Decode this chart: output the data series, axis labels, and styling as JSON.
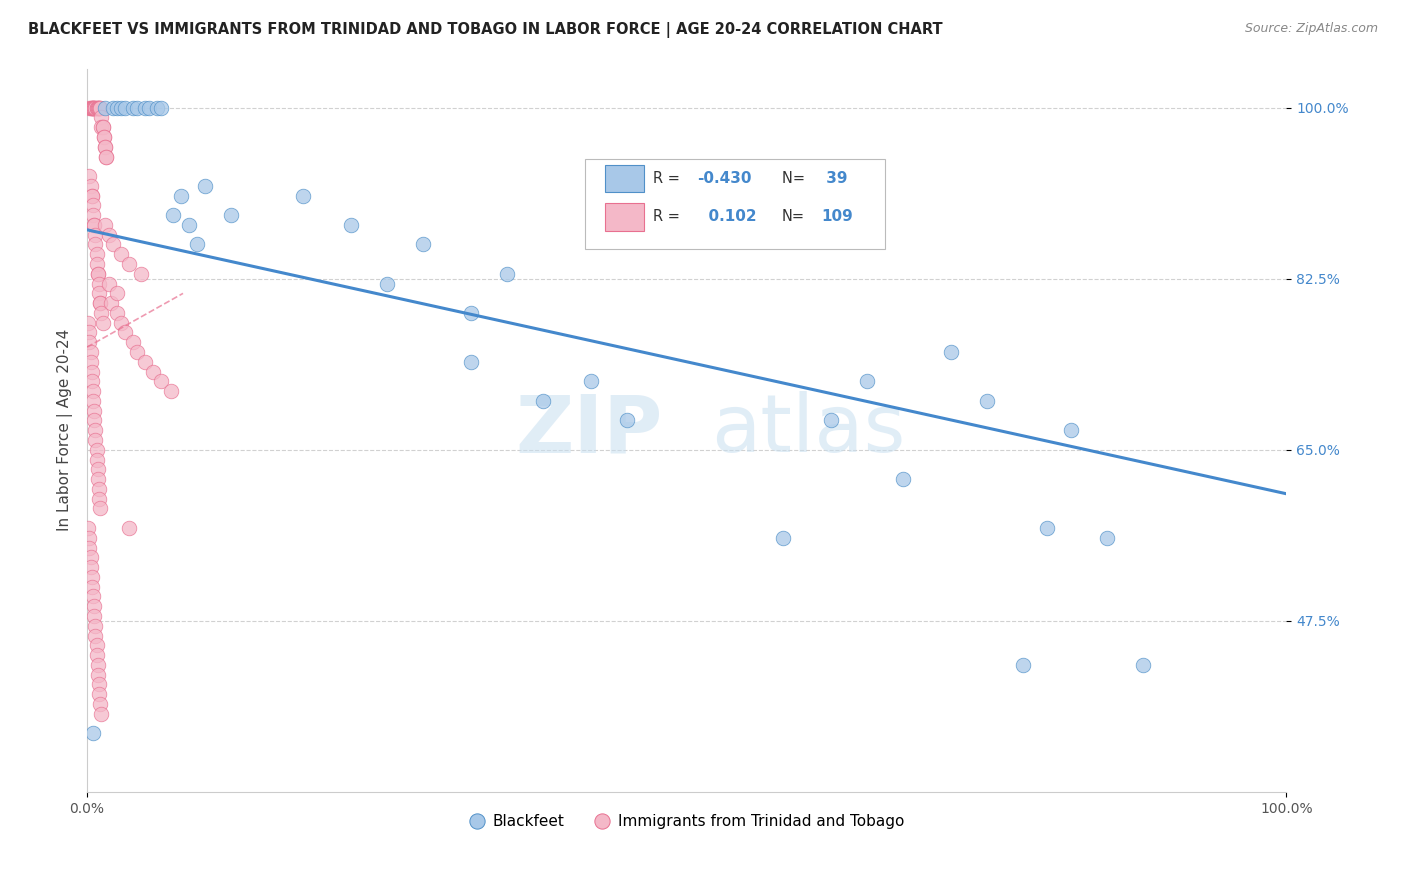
{
  "title": "BLACKFEET VS IMMIGRANTS FROM TRINIDAD AND TOBAGO IN LABOR FORCE | AGE 20-24 CORRELATION CHART",
  "source": "Source: ZipAtlas.com",
  "ylabel": "In Labor Force | Age 20-24",
  "xlim": [
    0,
    1.0
  ],
  "ylim": [
    0.3,
    1.04
  ],
  "yticks": [
    0.475,
    0.65,
    0.825,
    1.0
  ],
  "ytick_labels": [
    "47.5%",
    "65.0%",
    "82.5%",
    "100.0%"
  ],
  "xtick_labels": [
    "0.0%",
    "100.0%"
  ],
  "xtick_pos": [
    0.0,
    1.0
  ],
  "blue_R": -0.43,
  "blue_N": 39,
  "pink_R": 0.102,
  "pink_N": 109,
  "blue_color": "#a8c8e8",
  "pink_color": "#f4b8c8",
  "blue_edge_color": "#5090c8",
  "pink_edge_color": "#e87090",
  "blue_line_color": "#4488cc",
  "pink_line_color": "#e87090",
  "watermark_zip": "ZIP",
  "watermark_atlas": "atlas",
  "legend_label_blue": "Blackfeet",
  "legend_label_pink": "Immigrants from Trinidad and Tobago",
  "blue_scatter_x": [
    0.005,
    0.015,
    0.022,
    0.025,
    0.028,
    0.032,
    0.038,
    0.042,
    0.048,
    0.052,
    0.058,
    0.062,
    0.072,
    0.078,
    0.085,
    0.092,
    0.098,
    0.12,
    0.18,
    0.22,
    0.25,
    0.28,
    0.32,
    0.35,
    0.42,
    0.45,
    0.38,
    0.32,
    0.58,
    0.62,
    0.65,
    0.72,
    0.75,
    0.8,
    0.82,
    0.85,
    0.88,
    0.78,
    0.68
  ],
  "blue_scatter_y": [
    0.36,
    1.0,
    1.0,
    1.0,
    1.0,
    1.0,
    1.0,
    1.0,
    1.0,
    1.0,
    1.0,
    1.0,
    0.89,
    0.91,
    0.88,
    0.86,
    0.92,
    0.89,
    0.91,
    0.88,
    0.82,
    0.86,
    0.79,
    0.83,
    0.72,
    0.68,
    0.7,
    0.74,
    0.56,
    0.68,
    0.72,
    0.75,
    0.7,
    0.57,
    0.67,
    0.56,
    0.43,
    0.43,
    0.62
  ],
  "pink_scatter_x": [
    0.002,
    0.003,
    0.003,
    0.004,
    0.004,
    0.005,
    0.005,
    0.005,
    0.006,
    0.006,
    0.007,
    0.007,
    0.008,
    0.008,
    0.009,
    0.009,
    0.01,
    0.01,
    0.011,
    0.011,
    0.012,
    0.012,
    0.013,
    0.013,
    0.014,
    0.014,
    0.015,
    0.015,
    0.016,
    0.016,
    0.002,
    0.003,
    0.004,
    0.004,
    0.005,
    0.005,
    0.006,
    0.006,
    0.007,
    0.007,
    0.008,
    0.008,
    0.009,
    0.009,
    0.01,
    0.01,
    0.011,
    0.011,
    0.012,
    0.013,
    0.001,
    0.002,
    0.002,
    0.003,
    0.003,
    0.004,
    0.004,
    0.005,
    0.005,
    0.006,
    0.006,
    0.007,
    0.007,
    0.008,
    0.008,
    0.009,
    0.009,
    0.01,
    0.01,
    0.011,
    0.001,
    0.002,
    0.002,
    0.003,
    0.003,
    0.004,
    0.004,
    0.005,
    0.006,
    0.006,
    0.007,
    0.007,
    0.008,
    0.008,
    0.009,
    0.009,
    0.01,
    0.01,
    0.011,
    0.012,
    0.02,
    0.025,
    0.028,
    0.032,
    0.038,
    0.042,
    0.048,
    0.055,
    0.062,
    0.07,
    0.015,
    0.018,
    0.022,
    0.028,
    0.035,
    0.045,
    0.018,
    0.025,
    0.035
  ],
  "pink_scatter_y": [
    1.0,
    1.0,
    1.0,
    1.0,
    1.0,
    1.0,
    1.0,
    1.0,
    1.0,
    1.0,
    1.0,
    1.0,
    1.0,
    1.0,
    1.0,
    1.0,
    1.0,
    1.0,
    1.0,
    1.0,
    0.99,
    0.98,
    0.98,
    0.98,
    0.97,
    0.97,
    0.96,
    0.96,
    0.95,
    0.95,
    0.93,
    0.92,
    0.91,
    0.91,
    0.9,
    0.89,
    0.88,
    0.88,
    0.87,
    0.86,
    0.85,
    0.84,
    0.83,
    0.83,
    0.82,
    0.81,
    0.8,
    0.8,
    0.79,
    0.78,
    0.78,
    0.77,
    0.76,
    0.75,
    0.74,
    0.73,
    0.72,
    0.71,
    0.7,
    0.69,
    0.68,
    0.67,
    0.66,
    0.65,
    0.64,
    0.63,
    0.62,
    0.61,
    0.6,
    0.59,
    0.57,
    0.56,
    0.55,
    0.54,
    0.53,
    0.52,
    0.51,
    0.5,
    0.49,
    0.48,
    0.47,
    0.46,
    0.45,
    0.44,
    0.43,
    0.42,
    0.41,
    0.4,
    0.39,
    0.38,
    0.8,
    0.79,
    0.78,
    0.77,
    0.76,
    0.75,
    0.74,
    0.73,
    0.72,
    0.71,
    0.88,
    0.87,
    0.86,
    0.85,
    0.84,
    0.83,
    0.82,
    0.81,
    0.57
  ],
  "blue_line_x0": 0.0,
  "blue_line_y0": 0.875,
  "blue_line_x1": 1.0,
  "blue_line_y1": 0.605,
  "pink_line_x0": 0.0,
  "pink_line_y0": 0.755,
  "pink_line_x1": 0.08,
  "pink_line_y1": 0.81
}
